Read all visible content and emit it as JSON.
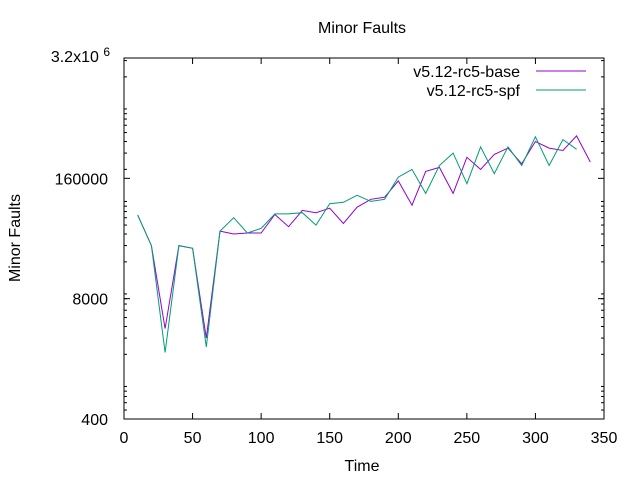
{
  "chart_data": {
    "type": "line",
    "title": "Minor Faults",
    "xlabel": "Time",
    "ylabel": "Minor Faults",
    "xlim": [
      0,
      350
    ],
    "ylim": [
      400,
      3200000
    ],
    "yscale": "log",
    "grid": false,
    "legend_position": "top-right",
    "x_ticks": [
      0,
      50,
      100,
      150,
      200,
      250,
      300,
      350
    ],
    "y_ticks": [
      {
        "value": 400,
        "label": "400"
      },
      {
        "value": 8000,
        "label": "8000"
      },
      {
        "value": 160000,
        "label": "160000"
      },
      {
        "value": 3200000,
        "label": "3.2x10",
        "exponent": "6"
      }
    ],
    "series": [
      {
        "name": "v5.12-rc5-base",
        "color": "#9400d3",
        "x": [
          10,
          20,
          30,
          40,
          50,
          60,
          70,
          80,
          90,
          100,
          110,
          120,
          130,
          140,
          150,
          160,
          170,
          180,
          190,
          200,
          210,
          220,
          230,
          240,
          250,
          260,
          270,
          280,
          290,
          300,
          310,
          320,
          330,
          340
        ],
        "y": [
          64000,
          30000,
          3800,
          30000,
          28000,
          3000,
          43000,
          40000,
          41000,
          41000,
          65000,
          48000,
          72000,
          68000,
          76000,
          52000,
          78000,
          95000,
          100000,
          150000,
          82000,
          190000,
          210000,
          110000,
          270000,
          200000,
          290000,
          340000,
          230000,
          400000,
          340000,
          320000,
          460000,
          240000
        ]
      },
      {
        "name": "v5.12-rc5-spf",
        "color": "#009e73",
        "x": [
          10,
          20,
          30,
          40,
          50,
          60,
          70,
          80,
          90,
          100,
          110,
          120,
          130,
          140,
          150,
          160,
          170,
          180,
          190,
          200,
          210,
          220,
          230,
          240,
          250,
          260,
          270,
          280,
          290,
          300,
          310,
          320,
          330
        ],
        "y": [
          64000,
          30000,
          2100,
          30000,
          28000,
          2400,
          43000,
          60000,
          41000,
          46000,
          66000,
          66000,
          68000,
          50000,
          85000,
          88000,
          105000,
          90000,
          95000,
          165000,
          200000,
          110000,
          220000,
          300000,
          140000,
          350000,
          180000,
          350000,
          220000,
          450000,
          220000,
          420000,
          330000
        ]
      }
    ]
  }
}
